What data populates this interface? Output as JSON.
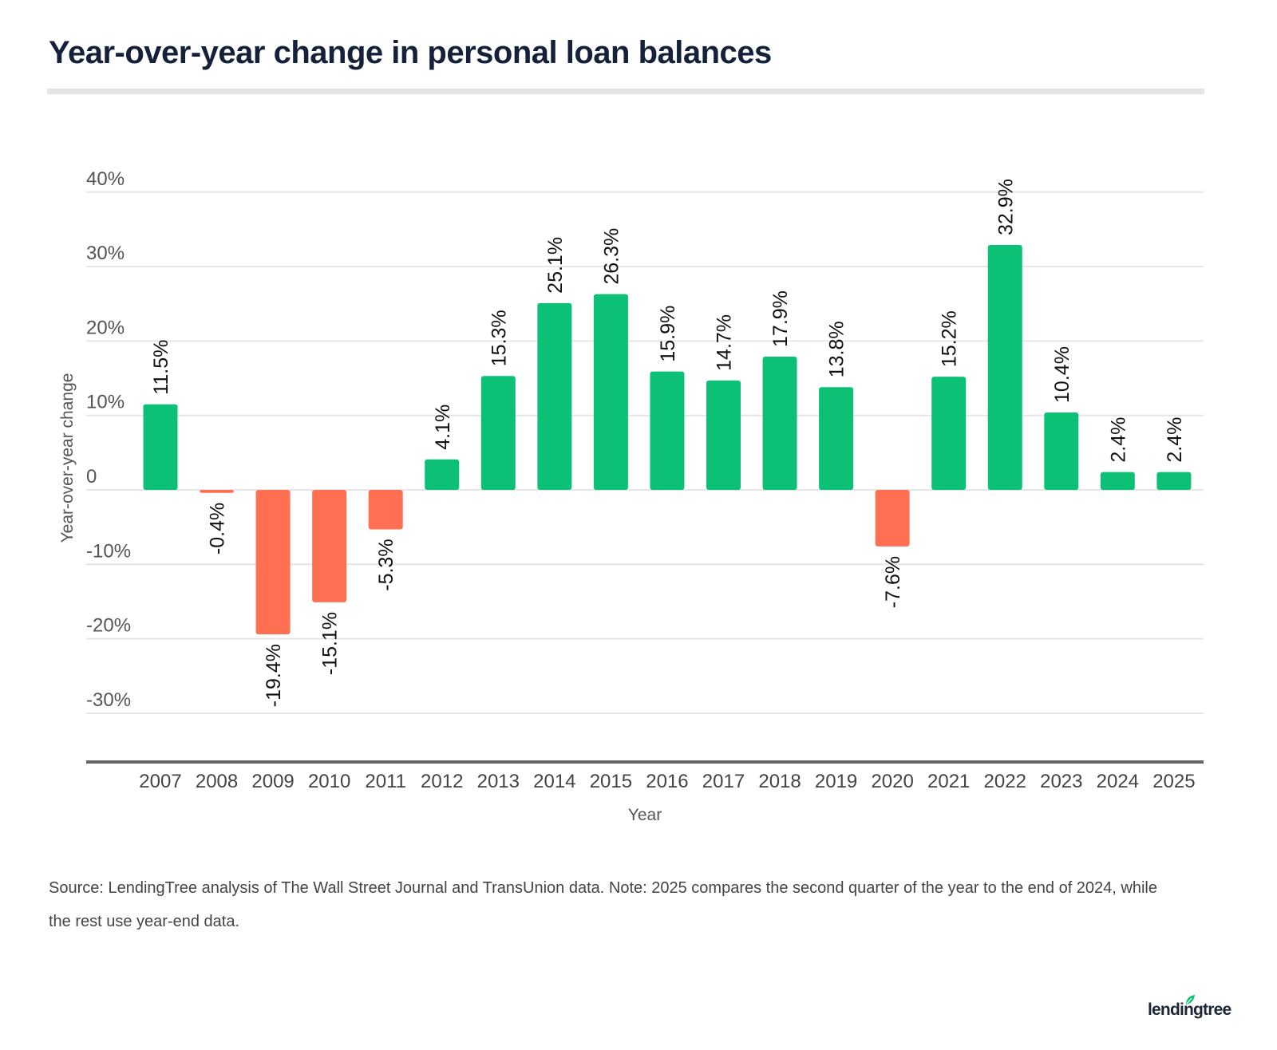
{
  "title": "Year-over-year change in personal loan balances",
  "source": "Source: LendingTree analysis of The Wall Street Journal and TransUnion data. Note: 2025 compares the second quarter of the year to the end of 2024, while the rest use year-end data.",
  "logo": {
    "text": "lendingtree",
    "icon": "leaf-icon"
  },
  "colors": {
    "positive": "#0cc076",
    "negative": "#ff7052",
    "title": "#15213a",
    "grid": "#e6e6e6",
    "axis": "#666666"
  },
  "chart_data": {
    "type": "bar",
    "title": "Year-over-year change in personal loan balances",
    "xlabel": "Year",
    "ylabel": "Year-over-year change",
    "categories": [
      "2007",
      "2008",
      "2009",
      "2010",
      "2011",
      "2012",
      "2013",
      "2014",
      "2015",
      "2016",
      "2017",
      "2018",
      "2019",
      "2020",
      "2021",
      "2022",
      "2023",
      "2024",
      "2025"
    ],
    "values": [
      11.5,
      -0.4,
      -19.4,
      -15.1,
      -5.3,
      4.1,
      15.3,
      25.1,
      26.3,
      15.9,
      14.7,
      17.9,
      13.8,
      -7.6,
      15.2,
      32.9,
      10.4,
      2.4,
      2.4
    ],
    "data_labels": [
      "11.5%",
      "-0.4%",
      "-19.4%",
      "-15.1%",
      "-5.3%",
      "4.1%",
      "15.3%",
      "25.1%",
      "26.3%",
      "15.9%",
      "14.7%",
      "17.9%",
      "13.8%",
      "-7.6%",
      "15.2%",
      "32.9%",
      "10.4%",
      "2.4%",
      "2.4%"
    ],
    "yticks": [
      40,
      30,
      20,
      10,
      0,
      -10,
      -20,
      -30
    ],
    "ytick_labels": [
      "40%",
      "30%",
      "20%",
      "10%",
      "0",
      "-10%",
      "-20%",
      "-30%"
    ],
    "ylim": [
      -36,
      40
    ],
    "grid": true,
    "legend": "none",
    "unit": "%"
  }
}
